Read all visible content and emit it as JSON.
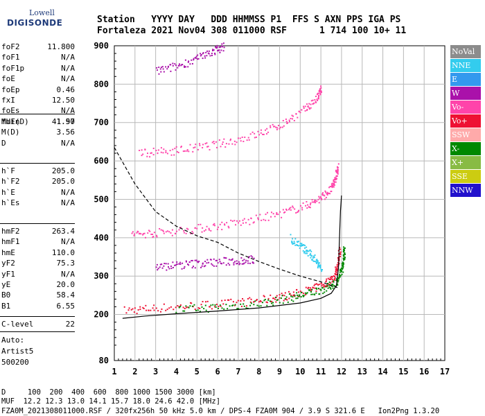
{
  "logo": {
    "line1": "Lowell",
    "line2": "DIGISONDE"
  },
  "header": {
    "labels": [
      "Station",
      "YYYY",
      "DAY",
      "DDD",
      "HHMMSS",
      "P1",
      "FFS",
      "S",
      "AXN",
      "PPS",
      "IGA",
      "PS"
    ],
    "values": [
      "Fortaleza",
      "2021",
      "Nov04",
      "308",
      "011000",
      "RSF",
      "1",
      "714",
      "100",
      "10+",
      "11"
    ]
  },
  "params_group1": [
    {
      "name": "foF2",
      "value": "11.800"
    },
    {
      "name": "foF1",
      "value": "N/A"
    },
    {
      "name": "foF1p",
      "value": "N/A"
    },
    {
      "name": "foE",
      "value": "N/A"
    },
    {
      "name": "foEp",
      "value": "0.46"
    },
    {
      "name": "fxI",
      "value": "12.50"
    },
    {
      "name": "foEs",
      "value": "N/A"
    },
    {
      "name": "fmin",
      "value": "1.50"
    }
  ],
  "params_group2": [
    {
      "name": "MUF(D)",
      "value": "41.97"
    },
    {
      "name": "M(D)",
      "value": "3.56"
    },
    {
      "name": "D",
      "value": "N/A"
    }
  ],
  "params_group3": [
    {
      "name": "h`F",
      "value": "205.0"
    },
    {
      "name": "h`F2",
      "value": "205.0"
    },
    {
      "name": "h`E",
      "value": "N/A"
    },
    {
      "name": "h`Es",
      "value": "N/A"
    }
  ],
  "params_group4": [
    {
      "name": "hmF2",
      "value": "263.4"
    },
    {
      "name": "hmF1",
      "value": "N/A"
    },
    {
      "name": "hmE",
      "value": "110.0"
    },
    {
      "name": "yF2",
      "value": "75.3"
    },
    {
      "name": "yF1",
      "value": "N/A"
    },
    {
      "name": "yE",
      "value": "20.0"
    },
    {
      "name": "B0",
      "value": "58.4"
    },
    {
      "name": "B1",
      "value": "6.55"
    }
  ],
  "params_group5": [
    {
      "name": "C-level",
      "value": "22"
    }
  ],
  "auto": {
    "line1": "Auto:",
    "line2": "Artist5",
    "line3": "500200"
  },
  "legend": [
    {
      "label": "NoVal",
      "color": "#8c8c8c"
    },
    {
      "label": "NNE",
      "color": "#33ccee"
    },
    {
      "label": "E",
      "color": "#3399ee"
    },
    {
      "label": "W",
      "color": "#aa11aa"
    },
    {
      "label": "Vo-",
      "color": "#ff44aa"
    },
    {
      "label": "Vo+",
      "color": "#ee1133"
    },
    {
      "label": "SSW",
      "color": "#ffaaaa"
    },
    {
      "label": "X-",
      "color": "#008800"
    },
    {
      "label": "X+",
      "color": "#88bb44"
    },
    {
      "label": "SSE",
      "color": "#cccc11"
    },
    {
      "label": "NNW",
      "color": "#2211cc"
    }
  ],
  "footer": {
    "line1": "D     100  200  400  600  800 1000 1500 3000 [km]",
    "line2": "MUF  12.2 12.3 13.0 14.1 15.7 18.0 24.6 42.0 [MHz]",
    "line3": "FZA0M_2021308011000.RSF / 320fx256h 50 kHz 5.0 km / DPS-4 FZA0M 904 / 3.9 S 321.6 E   Ion2Png 1.3.20"
  },
  "chart_data": {
    "type": "scatter",
    "xlim": [
      1,
      17
    ],
    "ylim": [
      80,
      900
    ],
    "x_ticks": [
      1,
      2,
      3,
      4,
      5,
      6,
      7,
      8,
      9,
      10,
      11,
      12,
      13,
      14,
      15,
      16,
      17
    ],
    "y_ticks": [
      80,
      200,
      300,
      400,
      500,
      600,
      700,
      800,
      900
    ],
    "grid": true,
    "traces": [
      {
        "name": "F2 first hop O",
        "color": "#ee1133",
        "points": [
          [
            1.5,
            212
          ],
          [
            3,
            218
          ],
          [
            5,
            225
          ],
          [
            7,
            232
          ],
          [
            8.5,
            242
          ],
          [
            9.5,
            252
          ],
          [
            10.5,
            266
          ],
          [
            11.2,
            282
          ],
          [
            11.6,
            300
          ],
          [
            11.8,
            330
          ],
          [
            11.9,
            375
          ]
        ]
      },
      {
        "name": "F2 first hop X",
        "color": "#008800",
        "points": [
          [
            4,
            214
          ],
          [
            6,
            220
          ],
          [
            8,
            230
          ],
          [
            9.5,
            245
          ],
          [
            10.5,
            258
          ],
          [
            11.3,
            272
          ],
          [
            11.8,
            290
          ],
          [
            12.0,
            320
          ],
          [
            12.1,
            350
          ],
          [
            12.1,
            375
          ]
        ]
      },
      {
        "name": "F2 second hop",
        "color": "#ff44aa",
        "points": [
          [
            1.8,
            410
          ],
          [
            3,
            414
          ],
          [
            4.5,
            422
          ],
          [
            6,
            432
          ],
          [
            7.5,
            445
          ],
          [
            9,
            464
          ],
          [
            10.2,
            484
          ],
          [
            11,
            505
          ],
          [
            11.5,
            530
          ],
          [
            11.7,
            560
          ],
          [
            11.8,
            585
          ]
        ]
      },
      {
        "name": "F2 third hop",
        "color": "#ff44aa",
        "points": [
          [
            2.2,
            622
          ],
          [
            3.5,
            626
          ],
          [
            5,
            636
          ],
          [
            6.5,
            650
          ],
          [
            8,
            672
          ],
          [
            9.2,
            700
          ],
          [
            10.2,
            735
          ],
          [
            10.8,
            765
          ],
          [
            11.0,
            790
          ]
        ]
      },
      {
        "name": "fourth hop",
        "color": "#aa11aa",
        "points": [
          [
            3,
            835
          ],
          [
            4,
            848
          ],
          [
            5,
            868
          ],
          [
            5.8,
            888
          ],
          [
            6.3,
            900
          ]
        ]
      },
      {
        "name": "oblique W",
        "color": "#aa11aa",
        "points": [
          [
            3,
            325
          ],
          [
            4,
            330
          ],
          [
            5,
            334
          ],
          [
            6,
            338
          ],
          [
            7,
            342
          ],
          [
            7.8,
            345
          ]
        ]
      },
      {
        "name": "NNE scatter",
        "color": "#33ccee",
        "points": [
          [
            9.5,
            400
          ],
          [
            10,
            380
          ],
          [
            10.4,
            360
          ],
          [
            10.8,
            340
          ],
          [
            11,
            320
          ]
        ]
      }
    ],
    "profile": {
      "points": [
        [
          1.4,
          190
        ],
        [
          2.5,
          196
        ],
        [
          4,
          202
        ],
        [
          6,
          209
        ],
        [
          8,
          217
        ],
        [
          10,
          230
        ],
        [
          11,
          242
        ],
        [
          11.5,
          255
        ],
        [
          11.75,
          275
        ],
        [
          11.85,
          320
        ],
        [
          11.9,
          400
        ],
        [
          11.95,
          470
        ],
        [
          12.0,
          510
        ]
      ]
    },
    "muf_curve": {
      "points": [
        [
          1,
          635
        ],
        [
          2,
          540
        ],
        [
          3,
          468
        ],
        [
          4,
          430
        ],
        [
          5,
          405
        ],
        [
          6,
          388
        ],
        [
          7,
          360
        ],
        [
          8,
          338
        ],
        [
          9,
          318
        ],
        [
          10,
          300
        ],
        [
          11,
          285
        ],
        [
          11.8,
          270
        ]
      ]
    }
  }
}
